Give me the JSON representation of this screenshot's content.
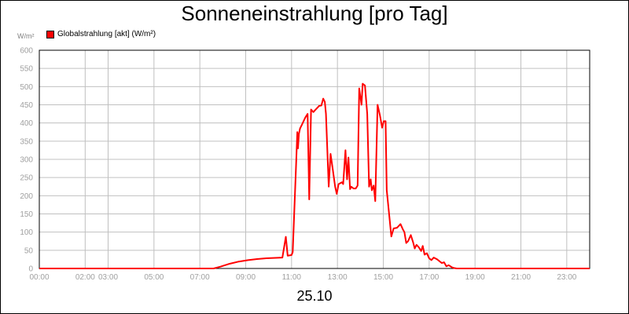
{
  "title": "Sonneneinstrahlung [pro Tag]",
  "date_label": "25.10",
  "unit_label": "W/m²",
  "colors": {
    "series": "#ff0000",
    "grid": "#c0c0c0",
    "tick_text": "#a0a0a0"
  },
  "chart_data": {
    "type": "line",
    "title": "Sonneneinstrahlung [pro Tag]",
    "xlabel": "25.10",
    "ylabel": "W/m²",
    "ylim": [
      0,
      600
    ],
    "xlim": [
      0,
      24
    ],
    "grid": true,
    "legend_position": "top-left",
    "yticks": [
      0,
      50,
      100,
      150,
      200,
      250,
      300,
      350,
      400,
      450,
      500,
      550,
      600
    ],
    "xticks": [
      {
        "value": 0,
        "label": "00:00"
      },
      {
        "value": 2,
        "label": "02:00"
      },
      {
        "value": 3,
        "label": "03:00"
      },
      {
        "value": 5,
        "label": "05:00"
      },
      {
        "value": 7,
        "label": "07:00"
      },
      {
        "value": 9,
        "label": "09:00"
      },
      {
        "value": 11,
        "label": "11:00"
      },
      {
        "value": 13,
        "label": "13:00"
      },
      {
        "value": 15,
        "label": "15:00"
      },
      {
        "value": 17,
        "label": "17:00"
      },
      {
        "value": 19,
        "label": "19:00"
      },
      {
        "value": 21,
        "label": "21:00"
      },
      {
        "value": 23,
        "label": "23:00"
      }
    ],
    "series": [
      {
        "name": "Globalstrahlung [akt] (W/m²)",
        "color": "#ff0000",
        "points": [
          [
            0,
            0
          ],
          [
            7.6,
            0
          ],
          [
            7.9,
            5
          ],
          [
            8.3,
            13
          ],
          [
            8.7,
            19
          ],
          [
            9.1,
            23
          ],
          [
            9.5,
            26
          ],
          [
            9.9,
            28
          ],
          [
            10.3,
            29
          ],
          [
            10.6,
            30
          ],
          [
            10.75,
            87
          ],
          [
            10.83,
            35
          ],
          [
            11.0,
            37
          ],
          [
            11.05,
            45
          ],
          [
            11.2,
            290
          ],
          [
            11.25,
            375
          ],
          [
            11.28,
            330
          ],
          [
            11.32,
            370
          ],
          [
            11.37,
            385
          ],
          [
            11.45,
            395
          ],
          [
            11.6,
            415
          ],
          [
            11.7,
            425
          ],
          [
            11.77,
            190
          ],
          [
            11.85,
            437
          ],
          [
            11.95,
            430
          ],
          [
            12.05,
            437
          ],
          [
            12.2,
            447
          ],
          [
            12.3,
            448
          ],
          [
            12.38,
            467
          ],
          [
            12.45,
            458
          ],
          [
            12.5,
            425
          ],
          [
            12.62,
            225
          ],
          [
            12.7,
            315
          ],
          [
            12.78,
            280
          ],
          [
            12.9,
            225
          ],
          [
            12.97,
            205
          ],
          [
            13.05,
            232
          ],
          [
            13.2,
            237
          ],
          [
            13.25,
            232
          ],
          [
            13.35,
            325
          ],
          [
            13.42,
            245
          ],
          [
            13.48,
            305
          ],
          [
            13.55,
            218
          ],
          [
            13.6,
            225
          ],
          [
            13.7,
            220
          ],
          [
            13.8,
            220
          ],
          [
            13.88,
            228
          ],
          [
            13.95,
            495
          ],
          [
            14.05,
            450
          ],
          [
            14.1,
            508
          ],
          [
            14.2,
            503
          ],
          [
            14.3,
            425
          ],
          [
            14.38,
            225
          ],
          [
            14.45,
            245
          ],
          [
            14.5,
            215
          ],
          [
            14.58,
            228
          ],
          [
            14.65,
            185
          ],
          [
            14.75,
            450
          ],
          [
            14.85,
            422
          ],
          [
            14.95,
            387
          ],
          [
            15.02,
            405
          ],
          [
            15.1,
            405
          ],
          [
            15.15,
            215
          ],
          [
            15.25,
            152
          ],
          [
            15.35,
            88
          ],
          [
            15.45,
            110
          ],
          [
            15.6,
            112
          ],
          [
            15.75,
            122
          ],
          [
            15.85,
            108
          ],
          [
            15.92,
            100
          ],
          [
            16.0,
            70
          ],
          [
            16.08,
            75
          ],
          [
            16.2,
            92
          ],
          [
            16.3,
            72
          ],
          [
            16.37,
            55
          ],
          [
            16.45,
            65
          ],
          [
            16.55,
            58
          ],
          [
            16.65,
            48
          ],
          [
            16.72,
            62
          ],
          [
            16.8,
            38
          ],
          [
            16.9,
            42
          ],
          [
            17.0,
            28
          ],
          [
            17.1,
            23
          ],
          [
            17.2,
            30
          ],
          [
            17.35,
            25
          ],
          [
            17.45,
            20
          ],
          [
            17.55,
            15
          ],
          [
            17.65,
            17
          ],
          [
            17.75,
            6
          ],
          [
            17.85,
            9
          ],
          [
            18.0,
            3
          ],
          [
            18.1,
            1
          ],
          [
            18.2,
            0
          ],
          [
            24,
            0
          ]
        ]
      }
    ]
  }
}
